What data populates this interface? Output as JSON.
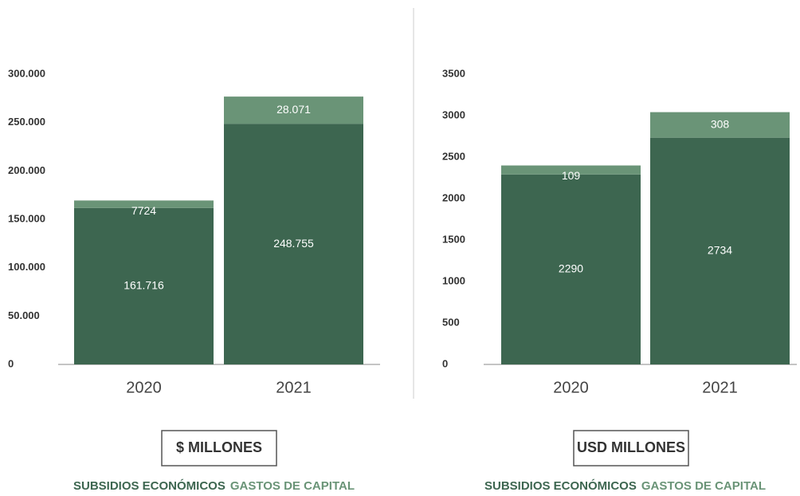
{
  "chart_data": [
    {
      "type": "stacked-bar",
      "unit": "$ MILLONES",
      "categories": [
        "2020",
        "2021"
      ],
      "series": [
        {
          "name": "SUBSIDIOS ECONÓMICOS",
          "color": "#3d6650",
          "values": [
            161716,
            248755
          ],
          "value_labels": [
            "161.716",
            "248.755"
          ]
        },
        {
          "name": "GASTOS DE CAPITAL",
          "color": "#6a9477",
          "values": [
            7724,
            28071
          ],
          "value_labels": [
            "7724",
            "28.071"
          ]
        }
      ],
      "ylim": [
        0,
        300000
      ],
      "yticks": [
        0,
        {
          "value": 50000,
          "label": "50.000"
        },
        {
          "value": 100000,
          "label": "100.000"
        },
        {
          "value": 150000,
          "label": "150.000"
        },
        {
          "value": 200000,
          "label": "200.000"
        },
        {
          "value": 250000,
          "label": "250.000"
        },
        {
          "value": 300000,
          "label": "300.000"
        }
      ]
    },
    {
      "type": "stacked-bar",
      "unit": "USD MILLONES",
      "categories": [
        "2020",
        "2021"
      ],
      "series": [
        {
          "name": "SUBSIDIOS ECONÓMICOS",
          "color": "#3d6650",
          "values": [
            2290,
            2734
          ]
        },
        {
          "name": "GASTOS DE CAPITAL",
          "color": "#6a9477",
          "values": [
            109,
            308
          ]
        }
      ],
      "ylim": [
        0,
        3500
      ],
      "yticks": [
        0,
        500,
        1000,
        1500,
        2000,
        2500,
        3000,
        3500
      ]
    }
  ]
}
